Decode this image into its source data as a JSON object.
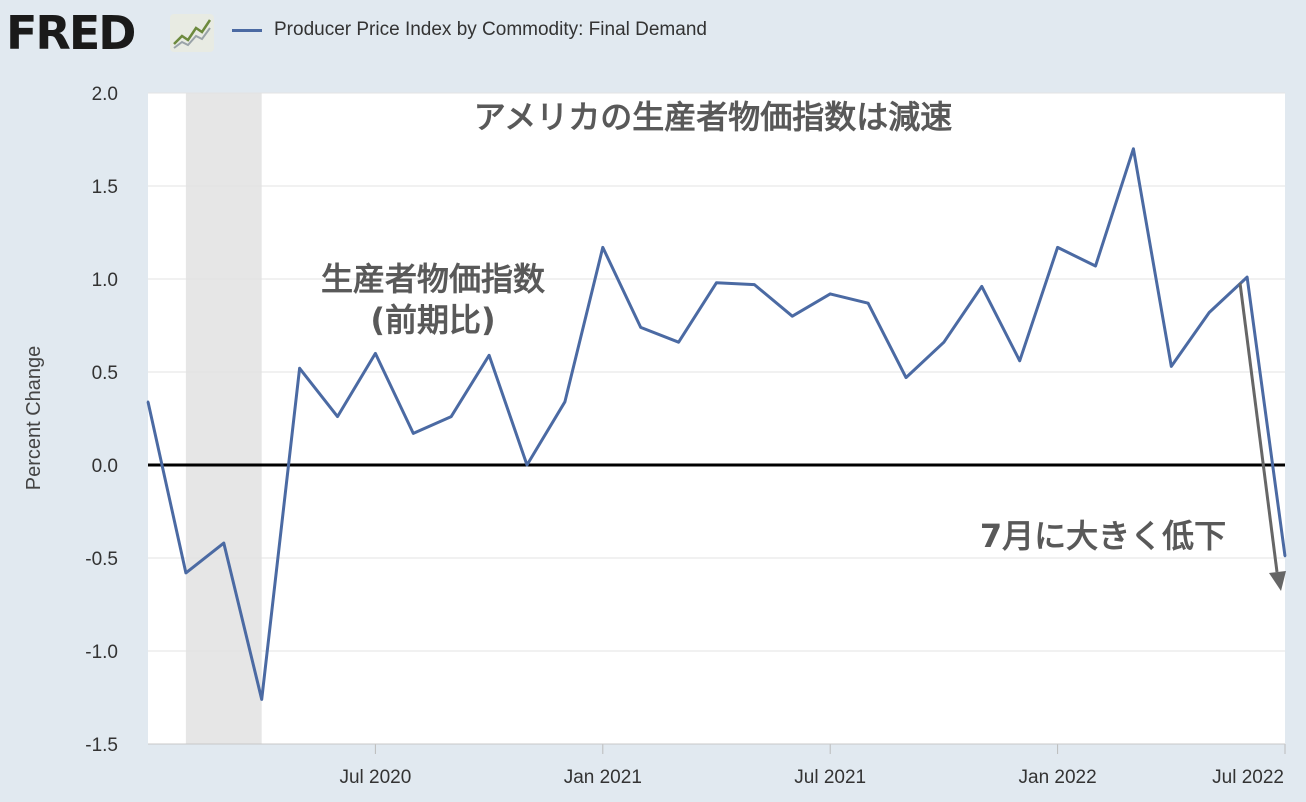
{
  "header": {
    "logo_text": "FRED",
    "logo_icon": "fred-chart-icon",
    "series_name": "Producer Price Index by Commodity: Final Demand",
    "series_color": "#4b6aa3"
  },
  "chart_data": {
    "type": "line",
    "ylabel": "Percent Change",
    "ylim": [
      -1.5,
      2.0
    ],
    "yticks": [
      -1.5,
      -1.0,
      -0.5,
      0.0,
      0.5,
      1.0,
      1.5,
      2.0
    ],
    "ytick_labels": [
      "-1.5",
      "-1.0",
      "-0.5",
      "0.0",
      "0.5",
      "1.0",
      "1.5",
      "2.0"
    ],
    "xticks": [
      "2020-07",
      "2021-01",
      "2021-07",
      "2022-01",
      "2022-07"
    ],
    "xtick_labels": [
      "Jul 2020",
      "Jan 2021",
      "Jul 2021",
      "Jan 2022",
      "Jul 2022"
    ],
    "recession_shading": [
      "2020-02",
      "2020-04"
    ],
    "grid": true,
    "zero_line": true,
    "series": [
      {
        "name": "Producer Price Index by Commodity: Final Demand",
        "color": "#4b6aa3",
        "x": [
          "2020-01",
          "2020-02",
          "2020-03",
          "2020-04",
          "2020-05",
          "2020-06",
          "2020-07",
          "2020-08",
          "2020-09",
          "2020-10",
          "2020-11",
          "2020-12",
          "2021-01",
          "2021-02",
          "2021-03",
          "2021-04",
          "2021-05",
          "2021-06",
          "2021-07",
          "2021-08",
          "2021-09",
          "2021-10",
          "2021-11",
          "2021-12",
          "2022-01",
          "2022-02",
          "2022-03",
          "2022-04",
          "2022-05",
          "2022-06",
          "2022-07"
        ],
        "values": [
          0.34,
          -0.58,
          -0.42,
          -1.26,
          0.52,
          0.26,
          0.6,
          0.17,
          0.26,
          0.59,
          0.0,
          0.34,
          1.17,
          0.74,
          0.66,
          0.98,
          0.97,
          0.8,
          0.92,
          0.87,
          0.47,
          0.66,
          0.96,
          0.56,
          1.17,
          1.07,
          1.7,
          0.53,
          0.82,
          1.01,
          -0.49
        ]
      }
    ],
    "annotations": {
      "title": "アメリカの生産者物価指数は減速",
      "series_note_line1": "生産者物価指数",
      "series_note_line2": "(前期比)",
      "drop_note": "7月に大きく低下",
      "arrow_color": "#666666"
    }
  }
}
